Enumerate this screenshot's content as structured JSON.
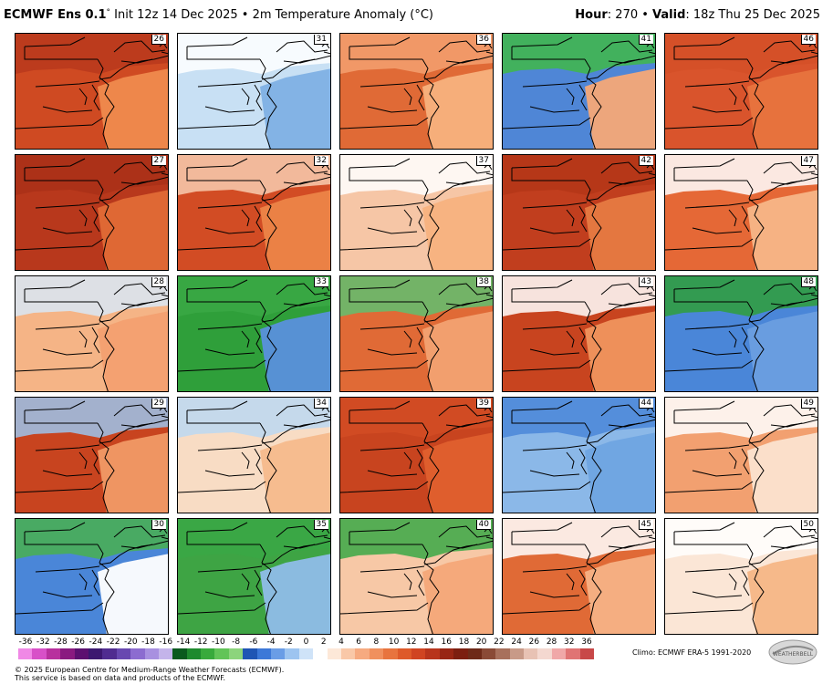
{
  "header": {
    "model": "ECMWF Ens 0.1",
    "degree_mark": "°",
    "init_text": "Init 12z 14 Dec 2025 • 2m Temperature Anomaly (°C)",
    "hour_label": "Hour",
    "hour_value": ": 270 • ",
    "valid_label": "Valid",
    "valid_value": ": 18z Thu 25 Dec 2025"
  },
  "panels": [
    {
      "member": "26",
      "fill": "#cf4a22",
      "ocean": "#ef8a4e",
      "north": "#b8381c"
    },
    {
      "member": "31",
      "fill": "#c8e0f4",
      "ocean": "#7fb0e4",
      "north": "#ffffff"
    },
    {
      "member": "36",
      "fill": "#e06a36",
      "ocean": "#f7b27e",
      "north": "#f3a070"
    },
    {
      "member": "41",
      "fill": "#4f86d6",
      "ocean": "#f6a877",
      "north": "#3fb848"
    },
    {
      "member": "46",
      "fill": "#d9542c",
      "ocean": "#e8743e",
      "north": "#d45028"
    },
    {
      "member": "27",
      "fill": "#b8381c",
      "ocean": "#e06a36",
      "north": "#a93018"
    },
    {
      "member": "32",
      "fill": "#d24c24",
      "ocean": "#ec8448",
      "north": "#f8cdb0"
    },
    {
      "member": "37",
      "fill": "#f6c6a6",
      "ocean": "#f7b27e",
      "north": "#ffffff"
    },
    {
      "member": "42",
      "fill": "#c13e1e",
      "ocean": "#e67a42",
      "north": "#b43618"
    },
    {
      "member": "47",
      "fill": "#e56836",
      "ocean": "#f7b688",
      "north": "#ffffff"
    },
    {
      "member": "28",
      "fill": "#f5b486",
      "ocean": "#f3a070",
      "north": "#d8e8f6"
    },
    {
      "member": "33",
      "fill": "#2f9f3a",
      "ocean": "#5a90dc",
      "north": "#3aa845"
    },
    {
      "member": "38",
      "fill": "#e06a36",
      "ocean": "#f2a272",
      "north": "#5fc070"
    },
    {
      "member": "43",
      "fill": "#c8441f",
      "ocean": "#f0955e",
      "north": "#ffffff"
    },
    {
      "member": "48",
      "fill": "#4a86d8",
      "ocean": "#6a9ee0",
      "north": "#2f9f3a"
    },
    {
      "member": "29",
      "fill": "#c8441f",
      "ocean": "#f19a66",
      "north": "#9cc4ec"
    },
    {
      "member": "34",
      "fill": "#f8dcc4",
      "ocean": "#f6b98c",
      "north": "#bcd8f2"
    },
    {
      "member": "39",
      "fill": "#c8441f",
      "ocean": "#e0602e",
      "north": "#d24c24"
    },
    {
      "member": "44",
      "fill": "#8bb8e8",
      "ocean": "#6fa4e2",
      "north": "#4a86d8"
    },
    {
      "member": "49",
      "fill": "#f2a070",
      "ocean": "#fbe3cf",
      "north": "#ffffff"
    },
    {
      "member": "30",
      "fill": "#4a86d8",
      "ocean": "#ffffff",
      "north": "#49b04f"
    },
    {
      "member": "35",
      "fill": "#3ea444",
      "ocean": "#8fbde9",
      "north": "#3aa845"
    },
    {
      "member": "40",
      "fill": "#f7c8a6",
      "ocean": "#f4a878",
      "north": "#3aa845"
    },
    {
      "member": "45",
      "fill": "#e06a36",
      "ocean": "#f6b286",
      "north": "#ffffff"
    },
    {
      "member": "50",
      "fill": "#fbe6d6",
      "ocean": "#f5b686",
      "north": "#ffffff"
    }
  ],
  "colorbar": {
    "ticks": [
      "-36",
      "-32",
      "-28",
      "-26",
      "-24",
      "-22",
      "-20",
      "-18",
      "-16",
      "-14",
      "-12",
      "-10",
      "-8",
      "-6",
      "-4",
      "-2",
      "0",
      "2",
      "4",
      "6",
      "8",
      "10",
      "12",
      "14",
      "16",
      "18",
      "20",
      "22",
      "24",
      "26",
      "28",
      "32",
      "36"
    ],
    "colors": [
      "#f088e6",
      "#d850c8",
      "#b8309e",
      "#8a1a80",
      "#5c1070",
      "#3c1870",
      "#502c90",
      "#6848b0",
      "#8c6cd0",
      "#a890e0",
      "#c4b4ea",
      "#0a5a1e",
      "#1e8a2e",
      "#38aa3c",
      "#62c458",
      "#8cd47c",
      "#1f55b4",
      "#3c78d8",
      "#6a9de6",
      "#9dc4f0",
      "#cfe3f8",
      "#ffffff",
      "#fde8d8",
      "#f9c8a8",
      "#f6aa80",
      "#f0905e",
      "#e8743e",
      "#de5a2a",
      "#d04422",
      "#b8341c",
      "#982614",
      "#7c1e10",
      "#6e2a18",
      "#8a4a36",
      "#a8705c",
      "#c89a88",
      "#e8c2b4",
      "#f4d8d0",
      "#f0a8a8",
      "#e07474",
      "#c84848"
    ]
  },
  "climo": "Climo: ECMWF ERA-5 1991-2020",
  "copyright": {
    "line1": "© 2025 European Centre for Medium-Range Weather Forecasts (ECMWF).",
    "line2": "This service is based on data and products of the ECMWF."
  },
  "logo": {
    "text": "WEATHERBELL"
  }
}
